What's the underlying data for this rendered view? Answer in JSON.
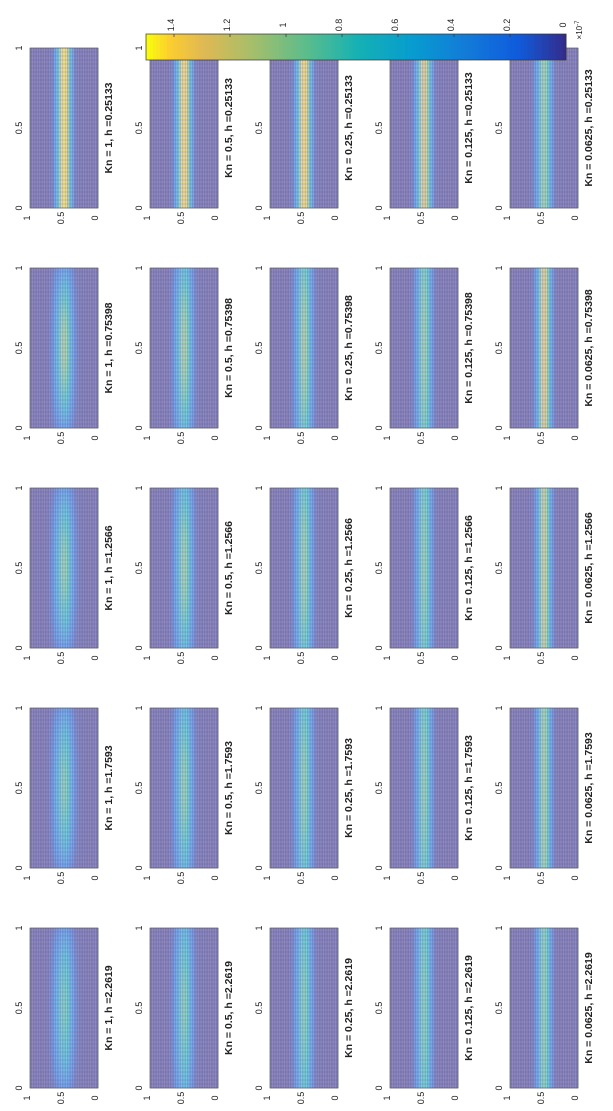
{
  "chart_data": {
    "type": "heatmap",
    "orientation": "rotated-90-ccw",
    "colormap": "parula",
    "grid": true,
    "kn_values": [
      "1",
      "0.5",
      "0.25",
      "0.125",
      "0.0625"
    ],
    "h_values": [
      "0.25133",
      "0.75398",
      "1.2566",
      "1.7593",
      "2.2619"
    ],
    "panel_title_template": "Kn = {kn}, h ={h}",
    "x_ticks": [
      "0",
      "0.5",
      "1"
    ],
    "y_ticks": [
      "0",
      "0.5",
      "1"
    ],
    "xlim": [
      0,
      1
    ],
    "ylim": [
      0,
      1
    ],
    "colorbar": {
      "range": [
        0,
        1.5
      ],
      "ticks": [
        "0",
        "0.2",
        "0.4",
        "0.6",
        "0.8",
        "1",
        "1.2",
        "1.4"
      ],
      "exponent_label": "×10",
      "exponent": "-7"
    },
    "panels": [
      {
        "kn": "1",
        "h": "0.25133",
        "peak": 1.48,
        "decay": 0.0,
        "spread": 0.06
      },
      {
        "kn": "1",
        "h": "0.75398",
        "peak": 1.05,
        "decay": 0.75,
        "spread": 0.09
      },
      {
        "kn": "1",
        "h": "1.2566",
        "peak": 0.95,
        "decay": 0.75,
        "spread": 0.1
      },
      {
        "kn": "1",
        "h": "1.7593",
        "peak": 0.9,
        "decay": 0.75,
        "spread": 0.1
      },
      {
        "kn": "1",
        "h": "2.2619",
        "peak": 0.85,
        "decay": 0.75,
        "spread": 0.1
      },
      {
        "kn": "0.5",
        "h": "0.25133",
        "peak": 1.45,
        "decay": 0.0,
        "spread": 0.06
      },
      {
        "kn": "0.5",
        "h": "0.75398",
        "peak": 1.05,
        "decay": 0.45,
        "spread": 0.08
      },
      {
        "kn": "0.5",
        "h": "1.2566",
        "peak": 1.0,
        "decay": 0.45,
        "spread": 0.08
      },
      {
        "kn": "0.5",
        "h": "1.7593",
        "peak": 0.95,
        "decay": 0.45,
        "spread": 0.08
      },
      {
        "kn": "0.5",
        "h": "2.2619",
        "peak": 0.9,
        "decay": 0.45,
        "spread": 0.08
      },
      {
        "kn": "0.25",
        "h": "0.25133",
        "peak": 1.45,
        "decay": 0.0,
        "spread": 0.06
      },
      {
        "kn": "0.25",
        "h": "0.75398",
        "peak": 1.05,
        "decay": 0.25,
        "spread": 0.07
      },
      {
        "kn": "0.25",
        "h": "1.2566",
        "peak": 1.0,
        "decay": 0.25,
        "spread": 0.07
      },
      {
        "kn": "0.25",
        "h": "1.7593",
        "peak": 0.95,
        "decay": 0.25,
        "spread": 0.07
      },
      {
        "kn": "0.25",
        "h": "2.2619",
        "peak": 0.9,
        "decay": 0.25,
        "spread": 0.07
      },
      {
        "kn": "0.125",
        "h": "0.25133",
        "peak": 1.3,
        "decay": 0.0,
        "spread": 0.06
      },
      {
        "kn": "0.125",
        "h": "0.75398",
        "peak": 1.0,
        "decay": 0.15,
        "spread": 0.06
      },
      {
        "kn": "0.125",
        "h": "1.2566",
        "peak": 0.95,
        "decay": 0.15,
        "spread": 0.06
      },
      {
        "kn": "0.125",
        "h": "1.7593",
        "peak": 0.95,
        "decay": 0.15,
        "spread": 0.06
      },
      {
        "kn": "0.125",
        "h": "2.2619",
        "peak": 0.9,
        "decay": 0.15,
        "spread": 0.06
      },
      {
        "kn": "0.0625",
        "h": "0.25133",
        "peak": 1.0,
        "decay": 0.0,
        "spread": 0.06
      },
      {
        "kn": "0.0625",
        "h": "0.75398",
        "peak": 1.35,
        "decay": 0.05,
        "spread": 0.05
      },
      {
        "kn": "0.0625",
        "h": "1.2566",
        "peak": 1.2,
        "decay": 0.05,
        "spread": 0.05
      },
      {
        "kn": "0.0625",
        "h": "1.7593",
        "peak": 1.05,
        "decay": 0.05,
        "spread": 0.05
      },
      {
        "kn": "0.0625",
        "h": "2.2619",
        "peak": 0.95,
        "decay": 0.05,
        "spread": 0.05
      }
    ]
  }
}
